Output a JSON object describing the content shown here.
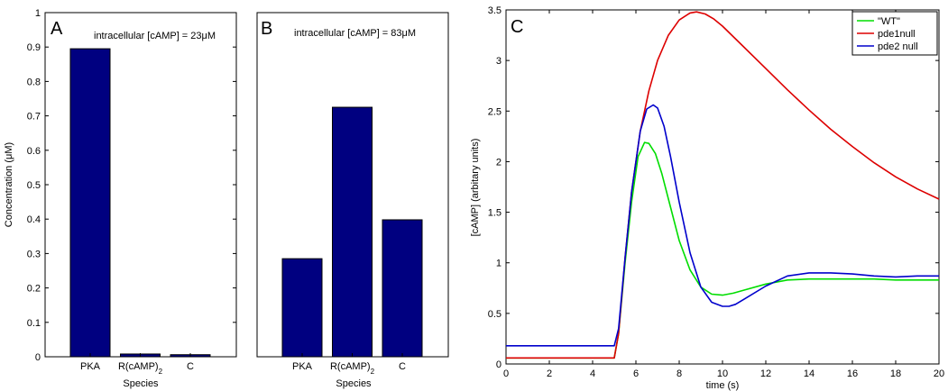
{
  "chart_data": [
    {
      "type": "bar",
      "panel_label": "A",
      "annotation": "intracellular [cAMP] = 23μM",
      "categories": [
        "PKA",
        "R(cAMP)",
        "C"
      ],
      "category_subscripts": [
        "",
        "2",
        ""
      ],
      "values": [
        0.895,
        0.008,
        0.006
      ],
      "color": "#000080",
      "xlabel": "Species",
      "ylabel": "Concentration (μM)",
      "ylim": [
        0,
        1
      ],
      "yticks": [
        "0",
        "0.1",
        "0.2",
        "0.3",
        "0.4",
        "0.5",
        "0.6",
        "0.7",
        "0.8",
        "0.9",
        "1"
      ],
      "grid": false
    },
    {
      "type": "bar",
      "panel_label": "B",
      "annotation": "intracellular [cAMP] = 83μM",
      "categories": [
        "PKA",
        "R(cAMP)",
        "C"
      ],
      "category_subscripts": [
        "",
        "2",
        ""
      ],
      "values": [
        0.285,
        0.725,
        0.398
      ],
      "color": "#000080",
      "xlabel": "Species",
      "ylim": [
        0,
        1
      ],
      "grid": false
    },
    {
      "type": "line",
      "panel_label": "C",
      "xlabel": "time (s)",
      "ylabel": "[cAMP] (arbitary units)",
      "xlim": [
        0,
        20
      ],
      "ylim": [
        0,
        3.5
      ],
      "xticks": [
        "0",
        "2",
        "4",
        "6",
        "8",
        "10",
        "12",
        "14",
        "16",
        "18",
        "20"
      ],
      "yticks": [
        "0",
        "0.5",
        "1",
        "1.5",
        "2",
        "2.5",
        "3",
        "3.5"
      ],
      "legend_position": "top-right",
      "grid": false,
      "series": [
        {
          "name": "\"WT\"",
          "color": "#00dd00",
          "x": [
            0,
            5,
            5.2,
            5.5,
            5.8,
            6.1,
            6.4,
            6.6,
            6.9,
            7.2,
            7.6,
            8,
            8.5,
            9,
            9.5,
            10,
            10.5,
            11,
            12,
            13,
            14,
            15,
            16,
            17,
            18,
            19,
            20
          ],
          "y": [
            0.06,
            0.06,
            0.3,
            1.0,
            1.6,
            2.05,
            2.19,
            2.18,
            2.08,
            1.88,
            1.55,
            1.22,
            0.93,
            0.76,
            0.69,
            0.68,
            0.7,
            0.73,
            0.79,
            0.83,
            0.84,
            0.84,
            0.84,
            0.84,
            0.83,
            0.83,
            0.83
          ]
        },
        {
          "name": "pde1null",
          "color": "#dd0000",
          "x": [
            0,
            5,
            5.2,
            5.5,
            5.8,
            6.2,
            6.6,
            7,
            7.5,
            8,
            8.5,
            8.8,
            9.2,
            9.6,
            10,
            11,
            12,
            13,
            14,
            15,
            16,
            17,
            18,
            19,
            20
          ],
          "y": [
            0.06,
            0.06,
            0.3,
            1.05,
            1.7,
            2.3,
            2.7,
            3.0,
            3.25,
            3.4,
            3.47,
            3.48,
            3.46,
            3.41,
            3.34,
            3.13,
            2.92,
            2.71,
            2.51,
            2.32,
            2.15,
            1.99,
            1.85,
            1.73,
            1.63
          ]
        },
        {
          "name": "pde2 null",
          "color": "#0000cc",
          "x": [
            0,
            5,
            5.2,
            5.5,
            5.8,
            6.2,
            6.5,
            6.8,
            7,
            7.3,
            7.6,
            8,
            8.5,
            9,
            9.5,
            10,
            10.3,
            10.6,
            11,
            12,
            13,
            14,
            15,
            16,
            17,
            18,
            19,
            20
          ],
          "y": [
            0.18,
            0.18,
            0.35,
            1.05,
            1.7,
            2.3,
            2.52,
            2.56,
            2.53,
            2.35,
            2.05,
            1.6,
            1.1,
            0.76,
            0.61,
            0.57,
            0.57,
            0.59,
            0.64,
            0.77,
            0.87,
            0.9,
            0.9,
            0.89,
            0.87,
            0.86,
            0.87,
            0.87
          ]
        }
      ]
    }
  ]
}
